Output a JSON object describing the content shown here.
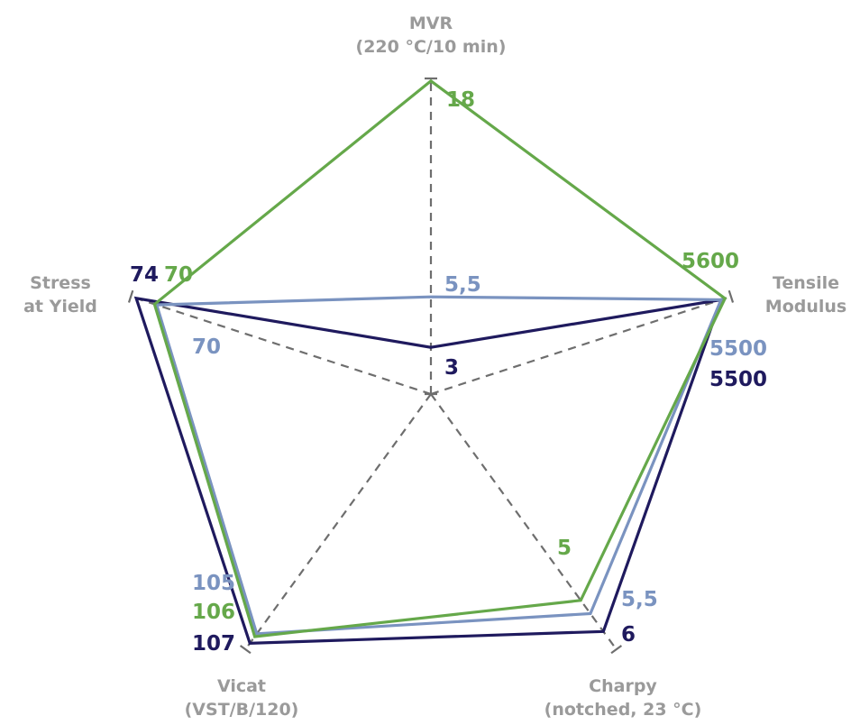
{
  "chart_data": {
    "type": "radar",
    "axes": [
      {
        "key": "mvr",
        "label_lines": [
          "MVR",
          "(220 °C/10 min)"
        ]
      },
      {
        "key": "tensile",
        "label_lines": [
          "Tensile",
          "Modulus"
        ]
      },
      {
        "key": "charpy",
        "label_lines": [
          "Charpy",
          "(notched, 23 °C)"
        ]
      },
      {
        "key": "vicat",
        "label_lines": [
          "Vicat",
          "(VST/B/120)"
        ]
      },
      {
        "key": "stress",
        "label_lines": [
          "Stress",
          "at Yield"
        ]
      }
    ],
    "series": [
      {
        "color": "#1f1a5e",
        "values": [
          3,
          5500,
          6,
          107,
          74
        ],
        "value_labels": [
          "3",
          "5500",
          "6",
          "107",
          "74"
        ]
      },
      {
        "color": "#7a93c0",
        "values": [
          5.5,
          5500,
          5.5,
          105,
          70
        ],
        "value_labels": [
          "5,5",
          "5500",
          "5,5",
          "105",
          "70"
        ]
      },
      {
        "color": "#65a84a",
        "values": [
          18,
          5600,
          5,
          106,
          70
        ],
        "value_labels": [
          "18",
          "5600",
          "5",
          "106",
          "70"
        ]
      }
    ]
  }
}
